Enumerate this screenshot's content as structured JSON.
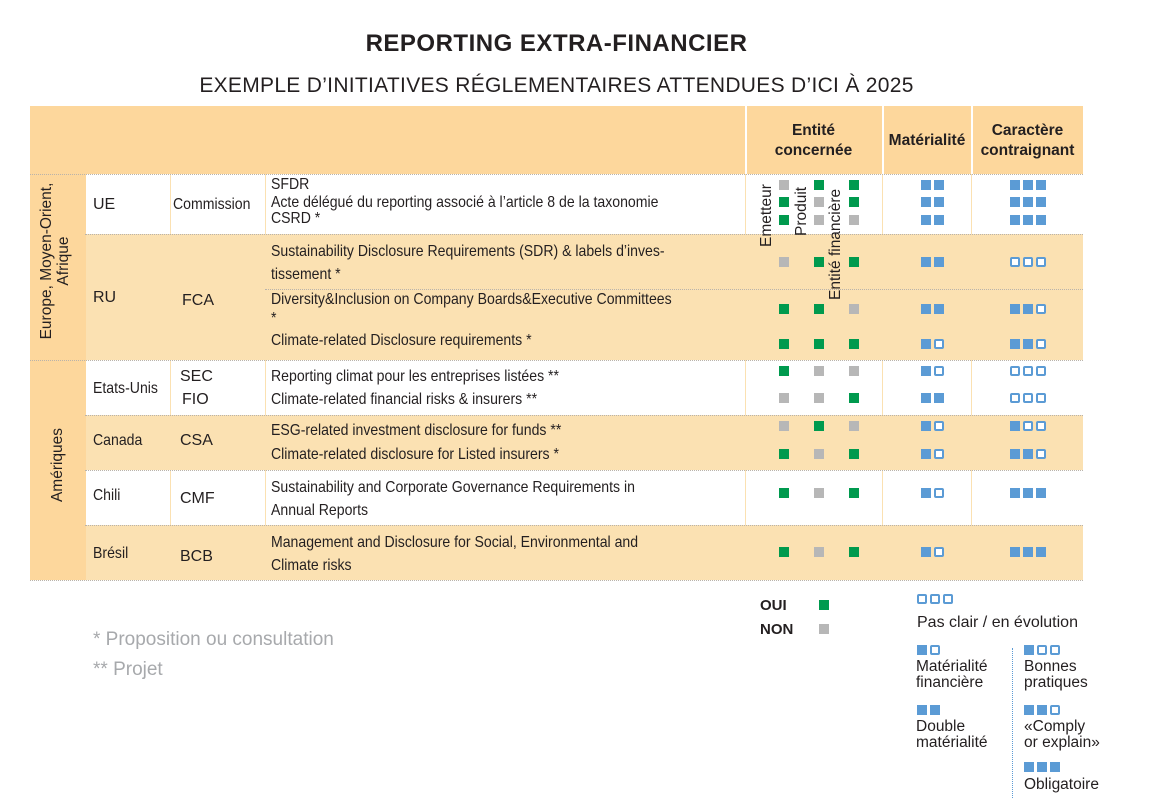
{
  "title": "REPORTING EXTRA-FINANCIER",
  "subtitle": "EXEMPLE D’INITIATIVES RÉGLEMENTAIRES ATTENDUES D’ICI À 2025",
  "headers": {
    "entite": "Entité concernée",
    "entite_l1": "Entité",
    "entite_l2": "concernée",
    "materialite": "Matérialité",
    "caractere_l1": "Caractère",
    "caractere_l2": "contraignant",
    "sub": [
      "Emetteur",
      "Produit",
      "Entité financière"
    ]
  },
  "regions": {
    "emea_l1": "Europe, Moyen-Orient,",
    "emea_l2": "Afrique",
    "ameriques": "Amériques"
  },
  "rows": {
    "ue": {
      "country": "UE",
      "body": "Commission",
      "items": [
        "SFDR",
        "Acte délégué du reporting associé à l’article 8 de la taxonomie",
        "CSRD *"
      ]
    },
    "ru": {
      "country": "RU",
      "body": "FCA",
      "items": [
        "Sustainability Disclosure Requirements (SDR) & labels d’inves-",
        "tissement *",
        "Diversity&Inclusion on Company Boards&Executive Committees",
        "*",
        "Climate-related Disclosure requirements *"
      ]
    },
    "us": {
      "country": "Etats-Unis",
      "body1": "SEC",
      "body2": "FIO",
      "items": [
        "Reporting climat pour les entreprises listées **",
        "Climate-related financial risks & insurers **"
      ]
    },
    "ca": {
      "country": "Canada",
      "body": "CSA",
      "items": [
        "ESG-related investment disclosure for funds **",
        "Climate-related disclosure for Listed insurers *"
      ]
    },
    "cl": {
      "country": "Chili",
      "body": "CMF",
      "items": [
        "Sustainability and Corporate Governance Requirements in",
        "Annual Reports"
      ]
    },
    "br": {
      "country": "Brésil",
      "body": "BCB",
      "items": [
        "Management and Disclosure for Social, Environmental and",
        "Climate risks"
      ]
    }
  },
  "matrix": [
    {
      "id": "sfdr",
      "entite": [
        "non",
        "oui",
        "oui"
      ],
      "materialite": "double",
      "caractere": "obligatoire"
    },
    {
      "id": "acte",
      "entite": [
        "oui",
        "non",
        "oui"
      ],
      "materialite": "double",
      "caractere": "obligatoire"
    },
    {
      "id": "csrd",
      "entite": [
        "oui",
        "non",
        "non"
      ],
      "materialite": "double",
      "caractere": "obligatoire"
    },
    {
      "id": "sdr",
      "entite": [
        "non",
        "oui",
        "oui"
      ],
      "materialite": "double",
      "caractere": "pas-clair"
    },
    {
      "id": "diversity",
      "entite": [
        "oui",
        "oui",
        "non"
      ],
      "materialite": "double",
      "caractere": "comply-or-explain"
    },
    {
      "id": "climate-ru",
      "entite": [
        "oui",
        "oui",
        "oui"
      ],
      "materialite": "financiere",
      "caractere": "comply-or-explain"
    },
    {
      "id": "sec",
      "entite": [
        "oui",
        "non",
        "non"
      ],
      "materialite": "financiere",
      "caractere": "pas-clair"
    },
    {
      "id": "fio",
      "entite": [
        "non",
        "non",
        "oui"
      ],
      "materialite": "double",
      "caractere": "pas-clair"
    },
    {
      "id": "esg-funds",
      "entite": [
        "non",
        "oui",
        "non"
      ],
      "materialite": "financiere",
      "caractere": "bonnes-pratiques"
    },
    {
      "id": "insurers-ca",
      "entite": [
        "oui",
        "non",
        "oui"
      ],
      "materialite": "financiere",
      "caractere": "comply-or-explain"
    },
    {
      "id": "chili",
      "entite": [
        "oui",
        "non",
        "oui"
      ],
      "materialite": "financiere",
      "caractere": "obligatoire"
    },
    {
      "id": "bresil",
      "entite": [
        "oui",
        "non",
        "oui"
      ],
      "materialite": "financiere",
      "caractere": "obligatoire"
    }
  ],
  "footnotes": [
    "* Proposition ou consultation",
    "** Projet"
  ],
  "legend": {
    "oui": "OUI",
    "non": "NON",
    "pas_clair": "Pas clair / en évolution",
    "mat_fin_l1": "Matérialité",
    "mat_fin_l2": "financière",
    "double_l1": "Double",
    "double_l2": "matérialité",
    "bonnes_l1": "Bonnes",
    "bonnes_l2": "pratiques",
    "comply_l1": "«Comply",
    "comply_l2": "or explain»",
    "obligatoire": "Obligatoire"
  },
  "colors": {
    "oui": "#009a4e",
    "non": "#b7b7b7",
    "blue": "#5b9bd5",
    "header": "#fdd79c",
    "band": "#fbe1b2"
  }
}
